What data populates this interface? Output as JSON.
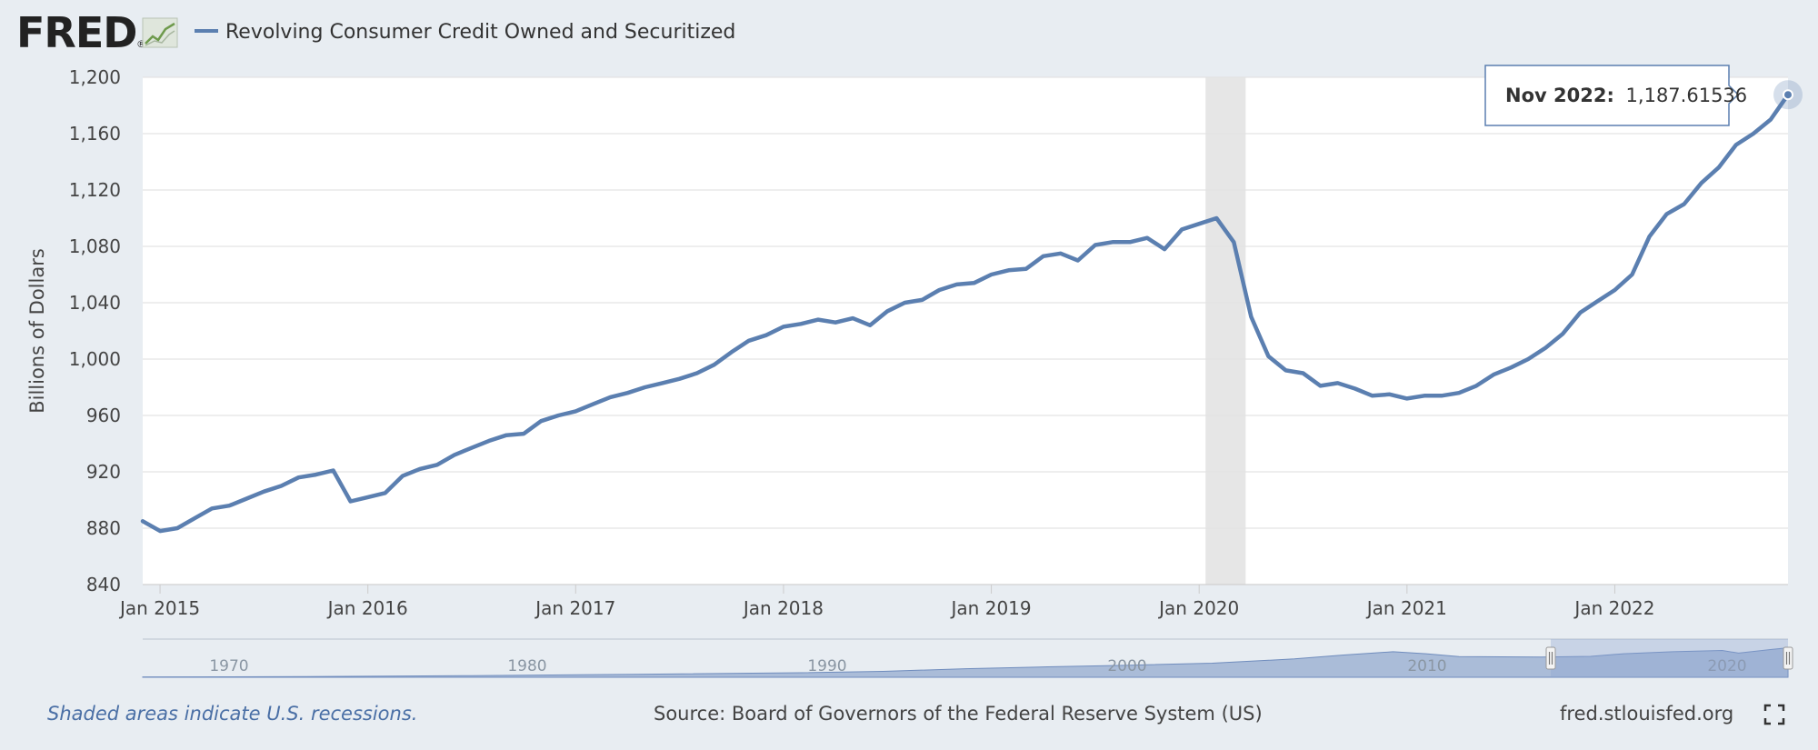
{
  "header": {
    "logo_text": "FRED",
    "logo_reg": "®",
    "legend_label": "Revolving Consumer Credit Owned and Securitized"
  },
  "colors": {
    "series": "#5b7fb0",
    "background": "#e8edf2",
    "plot": "#ffffff",
    "recession": "#e6e6e6",
    "navigator_fill": "#9fb3d4"
  },
  "chart_data": {
    "type": "line",
    "title": "Revolving Consumer Credit Owned and Securitized",
    "xlabel": "",
    "ylabel": "Billions of Dollars",
    "ylim": [
      840,
      1200
    ],
    "yticks": [
      "840",
      "880",
      "920",
      "960",
      "1,000",
      "1,040",
      "1,080",
      "1,120",
      "1,160",
      "1,200"
    ],
    "ytick_values": [
      840,
      880,
      920,
      960,
      1000,
      1040,
      1080,
      1120,
      1160,
      1200
    ],
    "xlim_months": [
      -1,
      94
    ],
    "xticks": [
      {
        "label": "Jan 2015",
        "m": 0
      },
      {
        "label": "Jan 2016",
        "m": 12
      },
      {
        "label": "Jan 2017",
        "m": 24
      },
      {
        "label": "Jan 2018",
        "m": 36
      },
      {
        "label": "Jan 2019",
        "m": 48
      },
      {
        "label": "Jan 2020",
        "m": 60
      },
      {
        "label": "Jan 2021",
        "m": 72
      },
      {
        "label": "Jan 2022",
        "m": 84
      }
    ],
    "start": "Dec 2014",
    "frequency": "monthly",
    "series": [
      {
        "name": "Revolving Consumer Credit Owned and Securitized",
        "values": [
          885,
          878,
          880,
          887,
          894,
          896,
          901,
          906,
          910,
          916,
          918,
          921,
          899,
          902,
          905,
          917,
          922,
          925,
          932,
          937,
          942,
          946,
          947,
          956,
          960,
          963,
          968,
          973,
          976,
          980,
          983,
          986,
          990,
          996,
          1005,
          1013,
          1017,
          1023,
          1025,
          1028,
          1026,
          1029,
          1024,
          1034,
          1040,
          1042,
          1049,
          1053,
          1054,
          1060,
          1063,
          1064,
          1073,
          1075,
          1070,
          1081,
          1083,
          1083,
          1086,
          1078,
          1092,
          1096,
          1100,
          1083,
          1030,
          1002,
          992,
          990,
          981,
          983,
          979,
          974,
          975,
          972,
          974,
          974,
          976,
          981,
          989,
          994,
          1000,
          1008,
          1018,
          1033,
          1041,
          1049,
          1060,
          1087,
          1103,
          1110,
          1125,
          1136,
          1152,
          1160,
          1170,
          1187.61536
        ]
      }
    ],
    "recession": {
      "start_m": 61,
      "end_m": 63
    },
    "tooltip": {
      "date": "Nov 2022:",
      "value": "1,187.61536"
    }
  },
  "navigator": {
    "labels": [
      "1970",
      "1980",
      "1990",
      "2000",
      "2010",
      "2020"
    ]
  },
  "footer": {
    "recession_note": "Shaded areas indicate U.S. recessions.",
    "source": "Source: Board of Governors of the Federal Reserve System (US)",
    "site": "fred.stlouisfed.org"
  }
}
